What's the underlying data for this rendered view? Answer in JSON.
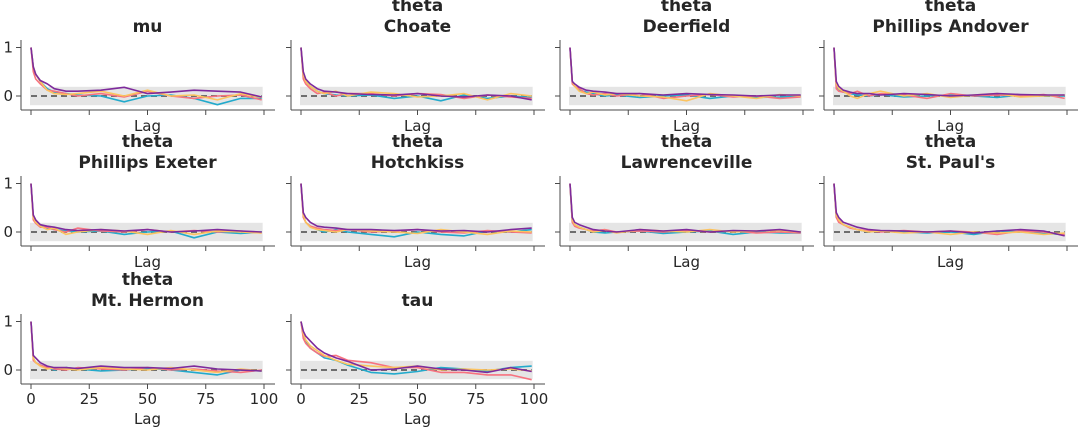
{
  "chart_data": {
    "type": "line",
    "xlabel": "Lag",
    "xlim": [
      0,
      100
    ],
    "ylim": [
      -0.3,
      1.1
    ],
    "xticks": [
      "0",
      "25",
      "50",
      "75",
      "100"
    ],
    "yticks": [
      "1",
      "0"
    ],
    "band": [
      -0.19,
      0.19
    ],
    "colors": [
      "#22aacc",
      "#f7727f",
      "#fcc35f",
      "#7e2a9c"
    ],
    "x": [
      0,
      1,
      2,
      4,
      7,
      10,
      15,
      20,
      30,
      40,
      50,
      60,
      70,
      80,
      90,
      99
    ],
    "panels": [
      {
        "title": [
          "mu"
        ],
        "series": [
          [
            1,
            0.6,
            0.45,
            0.3,
            0.15,
            0.08,
            0.05,
            0.02,
            0.0,
            -0.12,
            0.0,
            0.02,
            -0.05,
            -0.18,
            -0.05,
            -0.05
          ],
          [
            1,
            0.5,
            0.35,
            0.25,
            0.12,
            0.1,
            0.05,
            0.0,
            0.05,
            -0.02,
            0.1,
            0.0,
            -0.05,
            0.0,
            0.02,
            -0.08
          ],
          [
            1,
            0.6,
            0.45,
            0.3,
            0.12,
            0.05,
            0.03,
            0.05,
            0.1,
            0.0,
            0.12,
            0.0,
            0.02,
            -0.08,
            0.05,
            -0.03
          ],
          [
            1,
            0.6,
            0.45,
            0.32,
            0.25,
            0.15,
            0.1,
            0.1,
            0.12,
            0.18,
            0.05,
            0.08,
            0.12,
            0.1,
            0.08,
            -0.02
          ]
        ]
      },
      {
        "title": [
          "theta",
          "Choate"
        ],
        "series": [
          [
            1,
            0.4,
            0.3,
            0.2,
            0.1,
            0.05,
            0.02,
            0.0,
            0.02,
            -0.05,
            0.0,
            -0.1,
            0.02,
            -0.05,
            0.0,
            -0.03
          ],
          [
            1,
            0.35,
            0.25,
            0.15,
            0.05,
            0.08,
            0.0,
            0.05,
            0.05,
            0.0,
            0.05,
            0.03,
            -0.05,
            0.02,
            -0.02,
            -0.05
          ],
          [
            1,
            0.45,
            0.3,
            0.2,
            0.1,
            0.05,
            0.1,
            0.0,
            0.08,
            0.05,
            -0.02,
            0.0,
            0.05,
            -0.08,
            0.05,
            0.0
          ],
          [
            1,
            0.5,
            0.35,
            0.25,
            0.15,
            0.1,
            0.08,
            0.05,
            0.03,
            0.02,
            0.05,
            0.0,
            -0.02,
            0.02,
            0.0,
            -0.08
          ]
        ]
      },
      {
        "title": [
          "theta",
          "Deerfield"
        ],
        "series": [
          [
            1,
            0.3,
            0.2,
            0.12,
            0.08,
            0.05,
            0.0,
            0.02,
            -0.03,
            0.0,
            0.02,
            -0.05,
            0.0,
            -0.03,
            -0.02,
            0.0
          ],
          [
            1,
            0.25,
            0.2,
            0.15,
            0.05,
            0.02,
            0.05,
            0.0,
            0.05,
            -0.05,
            0.0,
            0.03,
            -0.02,
            0.0,
            -0.05,
            -0.02
          ],
          [
            1,
            0.3,
            0.2,
            0.1,
            0.05,
            0.08,
            0.02,
            0.05,
            0.0,
            -0.02,
            -0.1,
            0.05,
            0.0,
            -0.05,
            0.03,
            0.0
          ],
          [
            1,
            0.3,
            0.25,
            0.18,
            0.12,
            0.1,
            0.08,
            0.05,
            0.05,
            0.02,
            0.05,
            0.03,
            0.02,
            0.0,
            0.02,
            0.02
          ]
        ]
      },
      {
        "title": [
          "theta",
          "Phillips Andover"
        ],
        "series": [
          [
            1,
            0.2,
            0.12,
            0.08,
            0.05,
            0.02,
            0.0,
            0.03,
            -0.02,
            0.0,
            0.02,
            0.0,
            -0.03,
            0.02,
            0.0,
            0.0
          ],
          [
            1,
            0.15,
            0.1,
            0.08,
            0.05,
            0.1,
            0.0,
            0.05,
            0.02,
            -0.05,
            0.05,
            0.0,
            0.02,
            0.0,
            0.03,
            -0.05
          ],
          [
            1,
            0.25,
            0.15,
            0.1,
            0.0,
            -0.05,
            0.05,
            0.1,
            0.0,
            0.05,
            -0.03,
            0.02,
            0.05,
            -0.02,
            0.0,
            0.02
          ],
          [
            1,
            0.3,
            0.2,
            0.12,
            0.08,
            0.05,
            0.05,
            0.02,
            0.05,
            0.03,
            0.0,
            0.02,
            0.05,
            0.03,
            0.02,
            0.02
          ]
        ]
      },
      {
        "title": [
          "theta",
          "Phillips Exeter"
        ],
        "series": [
          [
            1,
            0.3,
            0.2,
            0.12,
            0.08,
            0.05,
            0.02,
            0.0,
            0.02,
            -0.05,
            0.0,
            0.02,
            -0.12,
            0.0,
            -0.03,
            0.0
          ],
          [
            1,
            0.25,
            0.18,
            0.1,
            0.1,
            0.05,
            0.0,
            0.08,
            0.02,
            0.0,
            0.05,
            0.0,
            0.03,
            0.0,
            0.02,
            -0.02
          ],
          [
            1,
            0.3,
            0.2,
            0.12,
            0.05,
            0.08,
            -0.05,
            0.0,
            0.05,
            0.02,
            -0.05,
            0.03,
            -0.05,
            0.02,
            0.0,
            -0.02
          ],
          [
            1,
            0.35,
            0.25,
            0.15,
            0.12,
            0.1,
            0.05,
            0.03,
            0.05,
            0.02,
            0.05,
            0.0,
            0.02,
            0.05,
            0.02,
            0.0
          ]
        ]
      },
      {
        "title": [
          "theta",
          "Hotchkiss"
        ],
        "series": [
          [
            1,
            0.35,
            0.2,
            0.12,
            0.05,
            0.0,
            0.05,
            0.0,
            -0.05,
            -0.1,
            0.0,
            -0.05,
            -0.08,
            0.02,
            0.0,
            0.05
          ],
          [
            1,
            0.3,
            0.2,
            0.12,
            0.08,
            0.05,
            0.03,
            0.05,
            0.0,
            0.02,
            0.05,
            0.0,
            -0.02,
            0.03,
            0.0,
            -0.02
          ],
          [
            1,
            0.35,
            0.2,
            0.1,
            0.05,
            0.03,
            0.0,
            0.05,
            0.02,
            0.0,
            -0.03,
            0.05,
            0.0,
            -0.05,
            0.02,
            0.0
          ],
          [
            1,
            0.4,
            0.3,
            0.2,
            0.12,
            0.1,
            0.08,
            0.05,
            0.05,
            0.03,
            0.05,
            0.02,
            0.03,
            0.0,
            0.05,
            0.08
          ]
        ]
      },
      {
        "title": [
          "theta",
          "Lawrenceville"
        ],
        "series": [
          [
            1,
            0.2,
            0.15,
            0.1,
            0.05,
            0.0,
            -0.02,
            0.0,
            0.02,
            -0.03,
            0.0,
            0.02,
            -0.05,
            0.0,
            -0.02,
            -0.02
          ],
          [
            1,
            0.2,
            0.12,
            0.08,
            0.05,
            0.02,
            0.05,
            0.0,
            0.02,
            0.0,
            0.03,
            0.0,
            0.02,
            -0.02,
            0.0,
            -0.02
          ],
          [
            1,
            0.25,
            0.15,
            0.1,
            0.05,
            0.0,
            0.03,
            -0.02,
            0.05,
            0.02,
            0.0,
            0.05,
            0.0,
            0.02,
            0.03,
            0.0
          ],
          [
            1,
            0.3,
            0.2,
            0.15,
            0.1,
            0.05,
            0.02,
            0.0,
            0.05,
            0.02,
            0.05,
            0.0,
            0.03,
            0.02,
            0.05,
            0.0
          ]
        ]
      },
      {
        "title": [
          "theta",
          "St. Paul's"
        ],
        "series": [
          [
            1,
            0.3,
            0.25,
            0.15,
            0.1,
            0.05,
            0.0,
            0.02,
            0.0,
            -0.02,
            0.0,
            -0.05,
            0.02,
            0.0,
            -0.03,
            -0.05
          ],
          [
            1,
            0.3,
            0.2,
            0.15,
            0.08,
            0.05,
            0.02,
            0.0,
            0.03,
            0.0,
            0.02,
            0.0,
            -0.05,
            0.02,
            0.0,
            -0.05
          ],
          [
            1,
            0.35,
            0.25,
            0.15,
            0.1,
            0.05,
            0.0,
            0.02,
            -0.02,
            0.0,
            -0.05,
            0.0,
            -0.02,
            0.0,
            -0.05,
            -0.02
          ],
          [
            1,
            0.4,
            0.3,
            0.2,
            0.15,
            0.1,
            0.05,
            0.03,
            0.02,
            0.0,
            0.02,
            -0.02,
            0.02,
            0.05,
            0.02,
            -0.08
          ]
        ]
      },
      {
        "title": [
          "theta",
          "Mt. Hermon"
        ],
        "series": [
          [
            1,
            0.25,
            0.15,
            0.1,
            0.05,
            0.0,
            0.05,
            0.02,
            -0.02,
            0.0,
            0.03,
            0.0,
            -0.05,
            -0.1,
            0.0,
            -0.02
          ],
          [
            1,
            0.2,
            0.15,
            0.1,
            0.05,
            0.02,
            0.0,
            0.05,
            0.02,
            0.0,
            0.05,
            0.0,
            0.02,
            -0.02,
            -0.05,
            0.0
          ],
          [
            1,
            0.25,
            0.15,
            0.08,
            0.02,
            0.05,
            0.02,
            0.0,
            0.05,
            0.02,
            0.0,
            0.05,
            0.0,
            -0.05,
            0.02,
            -0.02
          ],
          [
            1,
            0.3,
            0.25,
            0.15,
            0.08,
            0.05,
            0.05,
            0.03,
            0.08,
            0.05,
            0.05,
            0.03,
            0.08,
            0.02,
            0.0,
            -0.02
          ]
        ]
      },
      {
        "title": [
          "tau"
        ],
        "series": [
          [
            1,
            0.7,
            0.6,
            0.45,
            0.35,
            0.25,
            0.2,
            0.1,
            -0.05,
            -0.08,
            -0.03,
            0.05,
            0.02,
            -0.02,
            0.05,
            0.08
          ],
          [
            1,
            0.65,
            0.55,
            0.45,
            0.35,
            0.28,
            0.3,
            0.2,
            0.15,
            0.05,
            0.05,
            -0.05,
            -0.05,
            -0.1,
            -0.1,
            -0.2
          ],
          [
            1,
            0.75,
            0.62,
            0.5,
            0.4,
            0.3,
            0.2,
            0.12,
            0.08,
            0.05,
            0.08,
            0.0,
            0.02,
            0.0,
            0.02,
            -0.02
          ],
          [
            1,
            0.8,
            0.7,
            0.6,
            0.45,
            0.35,
            0.25,
            0.18,
            0.0,
            0.02,
            0.08,
            0.02,
            0.0,
            -0.05,
            0.05,
            -0.03
          ]
        ]
      }
    ]
  }
}
